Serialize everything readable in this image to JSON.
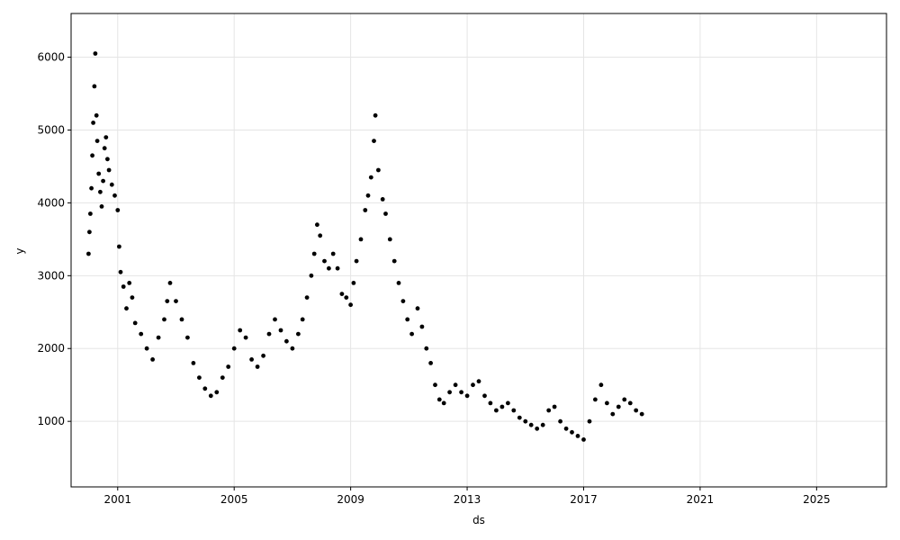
{
  "chart_data": {
    "type": "line",
    "xlabel": "ds",
    "ylabel": "y",
    "xlim": [
      1999.4,
      2027.4
    ],
    "ylim": [
      100,
      6600
    ],
    "grid": true,
    "x_ticks": [
      2001,
      2005,
      2009,
      2013,
      2017,
      2021,
      2025
    ],
    "x_tick_labels": [
      "2001",
      "2005",
      "2009",
      "2013",
      "2017",
      "2021",
      "2025"
    ],
    "y_ticks": [
      1000,
      2000,
      3000,
      4000,
      5000,
      6000
    ],
    "y_tick_labels": [
      "1000",
      "2000",
      "3000",
      "4000",
      "5000",
      "6000"
    ],
    "colors": {
      "observed": "#000000",
      "anomaly": "#ff0000",
      "forecast": "#0072B2",
      "interval": "#0072B2"
    },
    "series": [
      {
        "kind": "observed",
        "points": [
          [
            2000.0,
            3300
          ],
          [
            2000.03,
            3600
          ],
          [
            2000.06,
            3850
          ],
          [
            2000.1,
            4200
          ],
          [
            2000.13,
            4650
          ],
          [
            2000.16,
            5100
          ],
          [
            2000.2,
            5600
          ],
          [
            2000.23,
            6050
          ],
          [
            2000.27,
            5200
          ],
          [
            2000.3,
            4850
          ],
          [
            2000.35,
            4400
          ],
          [
            2000.4,
            4150
          ],
          [
            2000.45,
            3950
          ],
          [
            2000.5,
            4300
          ],
          [
            2000.55,
            4750
          ],
          [
            2000.6,
            4900
          ],
          [
            2000.65,
            4600
          ],
          [
            2000.7,
            4450
          ],
          [
            2000.8,
            4250
          ],
          [
            2000.9,
            4100
          ],
          [
            2001.0,
            3900
          ],
          [
            2001.05,
            3400
          ],
          [
            2001.1,
            3050
          ],
          [
            2001.2,
            2850
          ],
          [
            2001.3,
            2550
          ],
          [
            2001.4,
            2900
          ],
          [
            2001.5,
            2700
          ],
          [
            2001.6,
            2350
          ],
          [
            2001.8,
            2200
          ],
          [
            2002.0,
            2000
          ],
          [
            2002.2,
            1850
          ],
          [
            2002.4,
            2150
          ],
          [
            2002.6,
            2400
          ],
          [
            2002.7,
            2650
          ],
          [
            2002.8,
            2900
          ],
          [
            2003.0,
            2650
          ],
          [
            2003.2,
            2400
          ],
          [
            2003.4,
            2150
          ],
          [
            2003.6,
            1800
          ],
          [
            2003.8,
            1600
          ],
          [
            2004.0,
            1450
          ],
          [
            2004.2,
            1350
          ],
          [
            2004.4,
            1400
          ],
          [
            2004.6,
            1600
          ],
          [
            2004.8,
            1750
          ],
          [
            2005.0,
            2000
          ],
          [
            2005.2,
            2250
          ],
          [
            2005.4,
            2150
          ],
          [
            2005.6,
            1850
          ],
          [
            2005.8,
            1750
          ],
          [
            2006.0,
            1900
          ],
          [
            2006.2,
            2200
          ],
          [
            2006.4,
            2400
          ],
          [
            2006.6,
            2250
          ],
          [
            2006.8,
            2100
          ],
          [
            2007.0,
            2000
          ],
          [
            2007.2,
            2200
          ],
          [
            2007.35,
            2400
          ],
          [
            2007.5,
            2700
          ],
          [
            2007.65,
            3000
          ],
          [
            2007.75,
            3300
          ],
          [
            2007.85,
            3700
          ],
          [
            2007.95,
            3550
          ],
          [
            2008.1,
            3200
          ],
          [
            2008.25,
            3100
          ],
          [
            2008.4,
            3300
          ],
          [
            2008.55,
            3100
          ],
          [
            2008.7,
            2750
          ],
          [
            2008.85,
            2700
          ],
          [
            2009.0,
            2600
          ],
          [
            2009.1,
            2900
          ],
          [
            2009.2,
            3200
          ],
          [
            2009.35,
            3500
          ],
          [
            2009.5,
            3900
          ],
          [
            2009.6,
            4100
          ],
          [
            2009.7,
            4350
          ],
          [
            2009.8,
            4850
          ],
          [
            2009.85,
            5200
          ],
          [
            2009.95,
            4450
          ],
          [
            2010.1,
            4050
          ],
          [
            2010.2,
            3850
          ],
          [
            2010.35,
            3500
          ],
          [
            2010.5,
            3200
          ],
          [
            2010.65,
            2900
          ],
          [
            2010.8,
            2650
          ],
          [
            2010.95,
            2400
          ],
          [
            2011.1,
            2200
          ],
          [
            2011.3,
            2550
          ],
          [
            2011.45,
            2300
          ],
          [
            2011.6,
            2000
          ],
          [
            2011.75,
            1800
          ],
          [
            2011.9,
            1500
          ],
          [
            2012.05,
            1300
          ],
          [
            2012.2,
            1250
          ],
          [
            2012.4,
            1400
          ],
          [
            2012.6,
            1500
          ],
          [
            2012.8,
            1400
          ],
          [
            2013.0,
            1350
          ],
          [
            2013.2,
            1500
          ],
          [
            2013.4,
            1550
          ],
          [
            2013.6,
            1350
          ],
          [
            2013.8,
            1250
          ],
          [
            2014.0,
            1150
          ],
          [
            2014.2,
            1200
          ],
          [
            2014.4,
            1250
          ],
          [
            2014.6,
            1150
          ],
          [
            2014.8,
            1050
          ],
          [
            2015.0,
            1000
          ],
          [
            2015.2,
            950
          ],
          [
            2015.4,
            900
          ],
          [
            2015.6,
            950
          ],
          [
            2015.8,
            1150
          ],
          [
            2016.0,
            1200
          ],
          [
            2016.2,
            1000
          ],
          [
            2016.4,
            900
          ],
          [
            2016.6,
            850
          ],
          [
            2016.8,
            800
          ],
          [
            2017.0,
            750
          ],
          [
            2017.2,
            1000
          ],
          [
            2017.4,
            1300
          ],
          [
            2017.6,
            1500
          ],
          [
            2017.8,
            1250
          ],
          [
            2018.0,
            1100
          ],
          [
            2018.2,
            1200
          ],
          [
            2018.4,
            1300
          ],
          [
            2018.6,
            1250
          ],
          [
            2018.8,
            1150
          ],
          [
            2019.0,
            1100
          ]
        ]
      },
      {
        "kind": "forecast",
        "points": []
      }
    ]
  }
}
